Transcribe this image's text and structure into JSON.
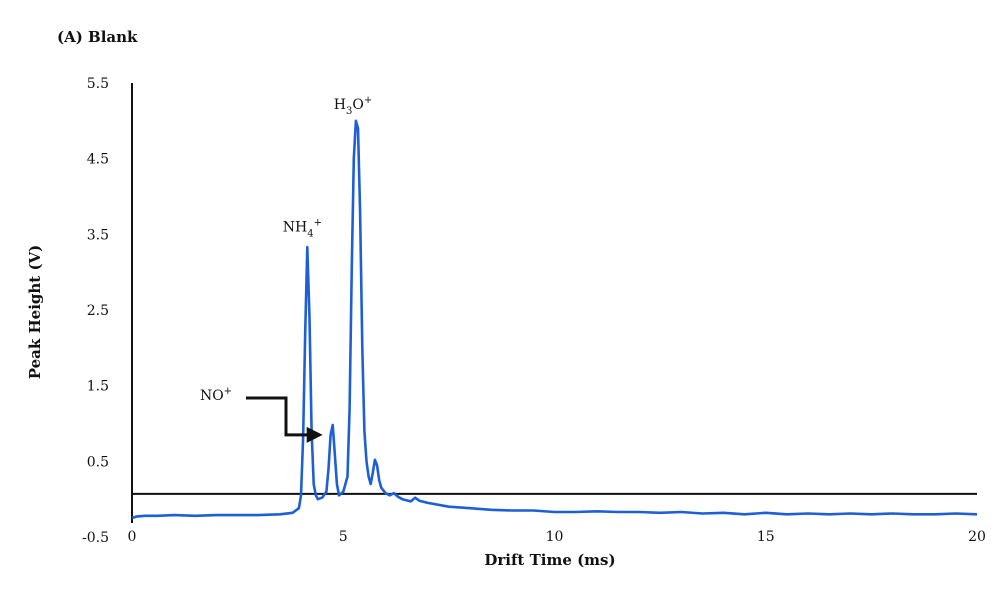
{
  "chart_data": {
    "type": "line",
    "title": "(A) Blank",
    "xlabel": "Drift Time (ms)",
    "ylabel": "Peak Height (V)",
    "xlim": [
      0,
      20
    ],
    "ylim": [
      -0.5,
      5.5
    ],
    "xticks": [
      "0",
      "5",
      "10",
      "15",
      "20"
    ],
    "yticks": [
      "5.5",
      "4.5",
      "3.5",
      "2.5",
      "1.5",
      "0.5",
      "-0.5"
    ],
    "grid": false,
    "baseline_y": 0.07,
    "colors": {
      "series": "#1f5fd6",
      "axis": "#111111"
    },
    "annotations": [
      {
        "base": "NH",
        "sub": "4",
        "sup": "+",
        "x": 4.15,
        "y": 3.35
      },
      {
        "base": "H",
        "sub": "3",
        "mid": "O",
        "sup": "+",
        "x": 5.35,
        "y": 5.0
      },
      {
        "base": "NO",
        "sub": "",
        "sup": "+",
        "arrow_to_x": 4.75,
        "arrow_to_y": 0.85
      }
    ],
    "series": [
      {
        "x": [
          0,
          0.1,
          0.3,
          0.6,
          1.0,
          1.5,
          2.0,
          2.5,
          3.0,
          3.5,
          3.8,
          3.95,
          4.0,
          4.05,
          4.1,
          4.15,
          4.2,
          4.25,
          4.3,
          4.35,
          4.4,
          4.5,
          4.6,
          4.65,
          4.7,
          4.75,
          4.8,
          4.85,
          4.9,
          5.0,
          5.1,
          5.15,
          5.2,
          5.25,
          5.3,
          5.35,
          5.4,
          5.45,
          5.5,
          5.55,
          5.6,
          5.65,
          5.7,
          5.75,
          5.8,
          5.85,
          5.9,
          6.0,
          6.1,
          6.2,
          6.3,
          6.4,
          6.6,
          6.7,
          6.8,
          7.0,
          7.5,
          8.0,
          8.5,
          9.0,
          9.5,
          10.0,
          10.5,
          11.0,
          11.5,
          12.0,
          12.5,
          13.0,
          13.5,
          14.0,
          14.5,
          15.0,
          15.5,
          16.0,
          16.5,
          17.0,
          17.5,
          18.0,
          18.5,
          19.0,
          19.5,
          20.0
        ],
        "y": [
          -0.25,
          -0.23,
          -0.22,
          -0.22,
          -0.21,
          -0.22,
          -0.21,
          -0.21,
          -0.21,
          -0.2,
          -0.18,
          -0.12,
          0.05,
          0.8,
          2.2,
          3.33,
          2.4,
          0.9,
          0.2,
          0.05,
          0.0,
          0.02,
          0.1,
          0.4,
          0.85,
          0.98,
          0.6,
          0.2,
          0.05,
          0.1,
          0.3,
          1.2,
          3.0,
          4.5,
          5.0,
          4.9,
          3.8,
          2.0,
          0.9,
          0.5,
          0.3,
          0.2,
          0.35,
          0.52,
          0.45,
          0.25,
          0.15,
          0.08,
          0.05,
          0.08,
          0.03,
          0.0,
          -0.03,
          0.02,
          -0.02,
          -0.05,
          -0.1,
          -0.12,
          -0.14,
          -0.15,
          -0.15,
          -0.17,
          -0.17,
          -0.16,
          -0.17,
          -0.17,
          -0.18,
          -0.17,
          -0.19,
          -0.18,
          -0.2,
          -0.18,
          -0.2,
          -0.19,
          -0.2,
          -0.19,
          -0.2,
          -0.19,
          -0.2,
          -0.2,
          -0.19,
          -0.2
        ]
      }
    ]
  }
}
